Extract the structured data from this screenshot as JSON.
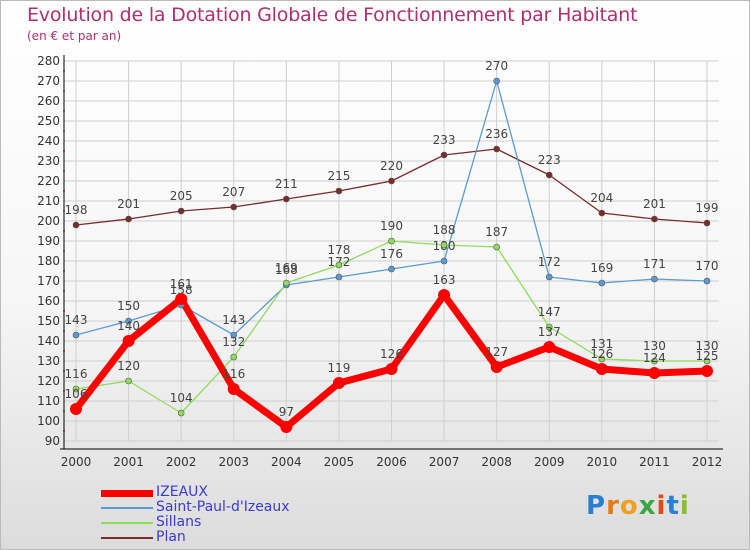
{
  "header": {
    "title": "Evolution de la Dotation Globale de Fonctionnement par Habitant",
    "subtitle": "(en € et par an)"
  },
  "logo": {
    "text": "Proxiti"
  },
  "chart_data": {
    "type": "line",
    "title": "Evolution de la Dotation Globale de Fonctionnement par Habitant",
    "subtitle": "(en € et par an)",
    "xlabel": "",
    "ylabel": "",
    "ylim": [
      90,
      280
    ],
    "ytick_step": 10,
    "grid": true,
    "legend_position": "bottom-left",
    "categories": [
      "2000",
      "2001",
      "2002",
      "2003",
      "2004",
      "2005",
      "2006",
      "2007",
      "2008",
      "2009",
      "2010",
      "2011",
      "2012"
    ],
    "series": [
      {
        "name": "Plan",
        "color": "#7a2b2b",
        "width": 1.3,
        "label_side": "above",
        "values": [
          198,
          201,
          205,
          207,
          211,
          215,
          220,
          233,
          236,
          223,
          204,
          201,
          199
        ]
      },
      {
        "name": "Saint-Paul-d'Izeaux",
        "color": "#5b9bd5",
        "width": 1.3,
        "label_side": "above",
        "values": [
          143,
          150,
          158,
          143,
          168,
          172,
          176,
          180,
          270,
          172,
          169,
          171,
          170
        ]
      },
      {
        "name": "Sillans",
        "color": "#8fdc5a",
        "width": 1.3,
        "label_side": "above",
        "values": [
          116,
          120,
          104,
          132,
          169,
          178,
          190,
          188,
          187,
          147,
          131,
          130,
          130
        ]
      },
      {
        "name": "IZEAUX",
        "color": "#ff0000",
        "width": 7,
        "label_side": "above",
        "values": [
          106,
          140,
          161,
          116,
          97,
          119,
          126,
          163,
          127,
          137,
          126,
          124,
          125
        ]
      }
    ],
    "legend": [
      {
        "name": "IZEAUX",
        "color": "#ff0000",
        "text_color": "#3b3bd0",
        "width": 7
      },
      {
        "name": "Saint-Paul-d'Izeaux",
        "color": "#5b9bd5",
        "text_color": "#3b3bd0",
        "width": 2
      },
      {
        "name": "Sillans",
        "color": "#8fdc5a",
        "text_color": "#3b3bd0",
        "width": 2
      },
      {
        "name": "Plan",
        "color": "#7a2b2b",
        "text_color": "#3b3bd0",
        "width": 2
      }
    ]
  }
}
